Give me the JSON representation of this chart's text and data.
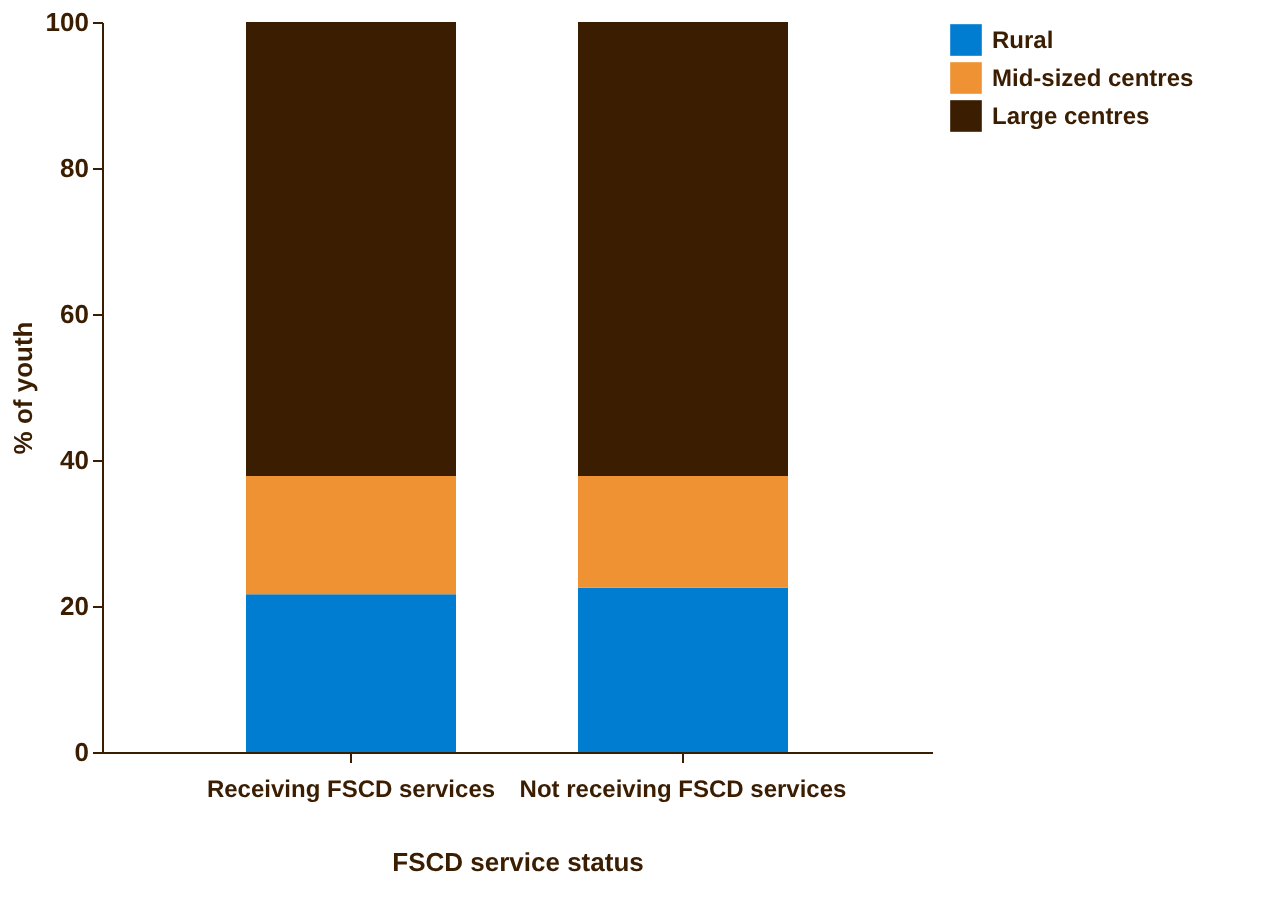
{
  "chart_data": {
    "type": "bar",
    "stacked": true,
    "xlabel": "FSCD service status",
    "ylabel": "% of youth",
    "categories": [
      "Receiving FSCD services",
      "Not receiving FSCD services"
    ],
    "series": [
      {
        "name": "Rural",
        "color": "#007dd1",
        "values": [
          21.6,
          22.5
        ]
      },
      {
        "name": "Mid-sized centres",
        "color": "#ef9234",
        "values": [
          16.2,
          15.3
        ]
      },
      {
        "name": "Large centres",
        "color": "#3b1e02",
        "values": [
          62.2,
          62.2
        ]
      }
    ],
    "ylim": [
      0,
      100
    ],
    "yticks": [
      0,
      20,
      40,
      60,
      80,
      100
    ],
    "grid": false,
    "legend": "top right"
  }
}
